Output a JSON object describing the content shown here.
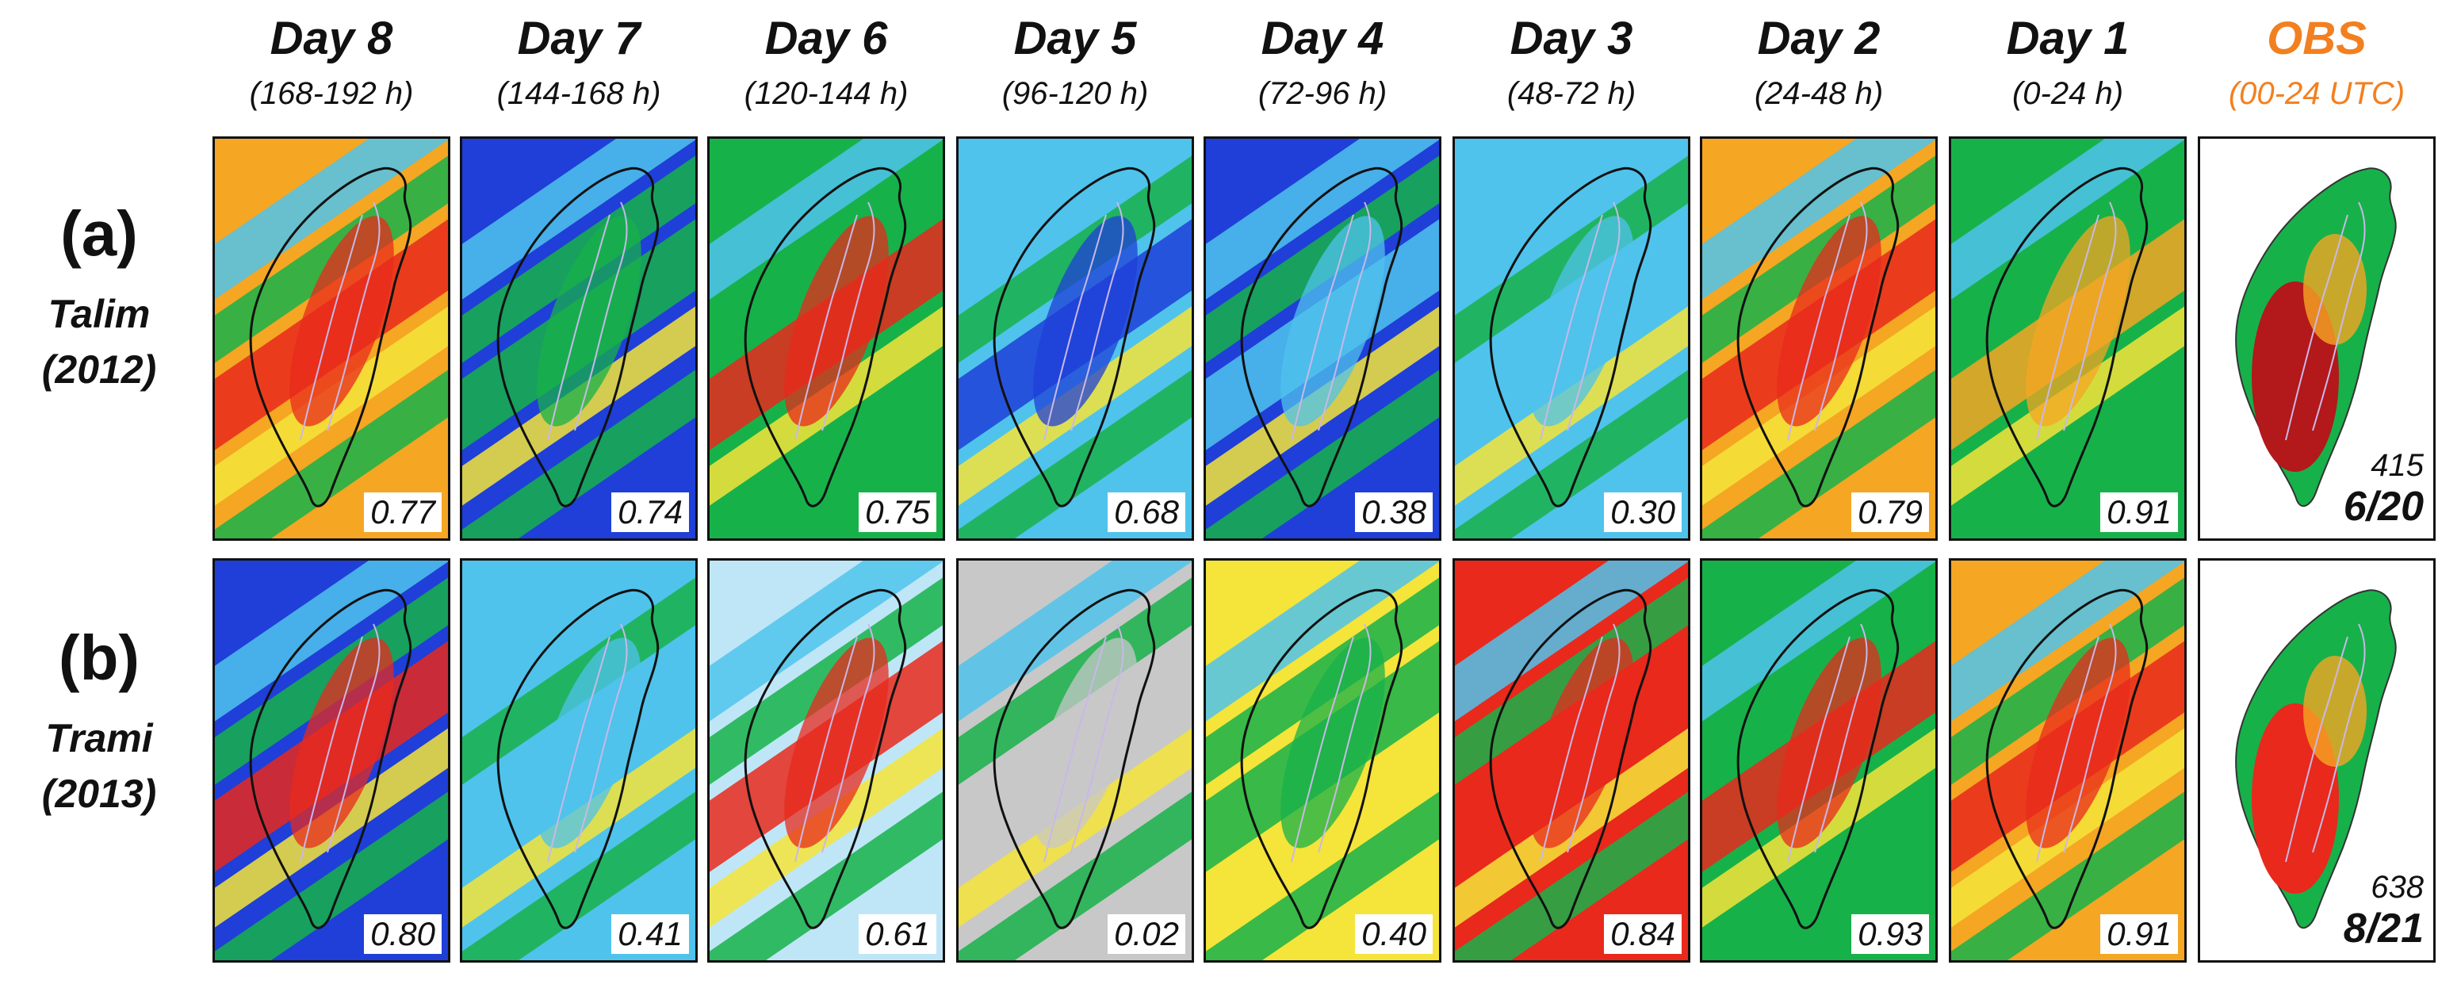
{
  "columns": [
    {
      "title": "Day 8",
      "range": "(168-192 h)"
    },
    {
      "title": "Day 7",
      "range": "(144-168 h)"
    },
    {
      "title": "Day 6",
      "range": "(120-144 h)"
    },
    {
      "title": "Day 5",
      "range": "(96-120 h)"
    },
    {
      "title": "Day 4",
      "range": "(72-96 h)"
    },
    {
      "title": "Day 3",
      "range": "(48-72 h)"
    },
    {
      "title": "Day 2",
      "range": "(24-48 h)"
    },
    {
      "title": "Day 1",
      "range": "(0-24 h)"
    },
    {
      "title": "OBS",
      "range": "(00-24 UTC)",
      "is_observation": true
    }
  ],
  "obs_color": "#f28020",
  "rows": [
    {
      "letter": "(a)",
      "name": "Talim",
      "year": "(2012)",
      "scores": [
        "0.77",
        "0.74",
        "0.75",
        "0.68",
        "0.38",
        "0.30",
        "0.79",
        "0.91"
      ],
      "obs_max": "415",
      "obs_date": "6/20"
    },
    {
      "letter": "(b)",
      "name": "Trami",
      "year": "(2013)",
      "scores": [
        "0.80",
        "0.41",
        "0.61",
        "0.02",
        "0.40",
        "0.84",
        "0.93",
        "0.91"
      ],
      "obs_max": "638",
      "obs_date": "8/21"
    }
  ],
  "rainfall_palette": [
    "#c8c8c8",
    "#bfe6f7",
    "#4fc3ec",
    "#1f3fd8",
    "#17b14a",
    "#8fd13f",
    "#f5e43a",
    "#f5a623",
    "#e8291c",
    "#b3181a",
    "#d63fd6"
  ],
  "panel_colors": [
    [
      "#e8291c",
      "#17b14a",
      "#e8291c",
      "#1f3fd8",
      "#4fc3ec",
      "#4fc3ec",
      "#e8291c",
      "#f5a623",
      "#b3181a"
    ],
    [
      "#e8291c",
      "#4fc3ec",
      "#e8291c",
      "#c8c8c8",
      "#17b14a",
      "#e8291c",
      "#e8291c",
      "#e8291c",
      "#e8291c"
    ]
  ],
  "panel_backgrounds": [
    [
      "#f5a623",
      "#1f3fd8",
      "#17b14a",
      "#4fc3ec",
      "#1f3fd8",
      "#4fc3ec",
      "#f5a623",
      "#17b14a",
      "#ffffff"
    ],
    [
      "#1f3fd8",
      "#4fc3ec",
      "#bfe6f7",
      "#c8c8c8",
      "#f5e43a",
      "#e8291c",
      "#17b14a",
      "#f5a623",
      "#ffffff"
    ]
  ]
}
